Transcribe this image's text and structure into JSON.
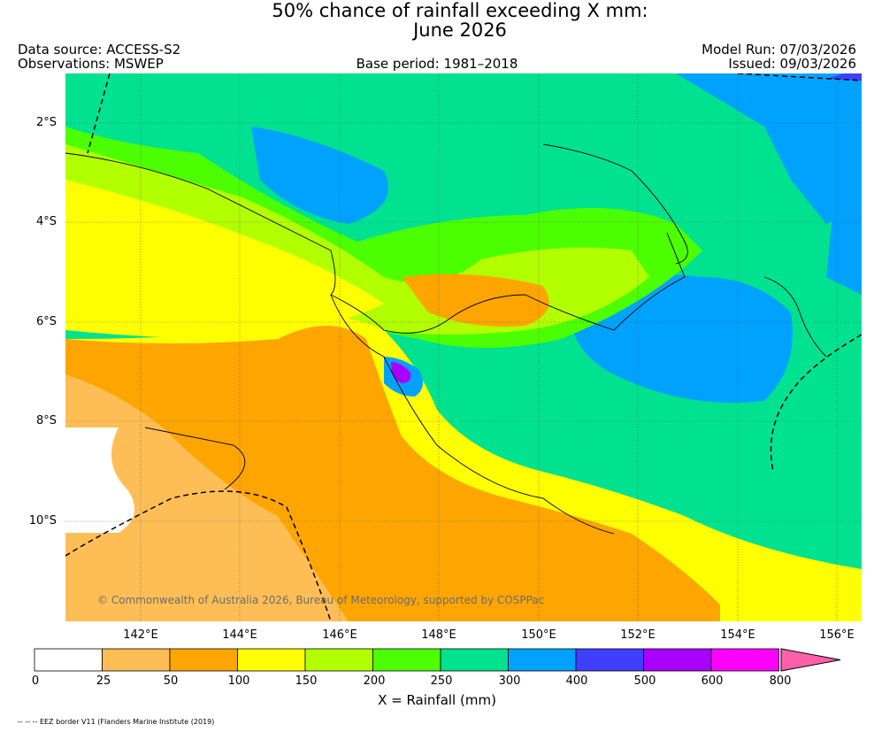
{
  "header": {
    "title_line1": "50% chance of rainfall exceeding X mm:",
    "title_line2": "June 2026",
    "data_source": "Data source: ACCESS-S2",
    "observations": "Observations: MSWEP",
    "base_period": "Base period: 1981–2018",
    "model_run": "Model Run: 07/03/2026",
    "issued": "Issued: 09/03/2026"
  },
  "map": {
    "lat_labels": [
      "2°S",
      "4°S",
      "6°S",
      "8°S",
      "10°S"
    ],
    "lon_labels": [
      "142°E",
      "144°E",
      "146°E",
      "148°E",
      "150°E",
      "152°E",
      "154°E",
      "156°E"
    ],
    "copyright": "© Commonwealth of Australia 2026, Bureau of Meteorology, supported by COSPPac",
    "sea_color": "#00e28f",
    "land_color_base": "#ffa500"
  },
  "colorbar": {
    "title": "X = Rainfall (mm)",
    "tick_labels": [
      "0",
      "25",
      "50",
      "100",
      "150",
      "200",
      "250",
      "300",
      "400",
      "500",
      "600",
      "800"
    ],
    "colors": [
      "#ffffff",
      "#ffbe55",
      "#ffa500",
      "#ffff00",
      "#b2ff00",
      "#4cff00",
      "#00e28f",
      "#00a2ff",
      "#3f3fff",
      "#aa00ff",
      "#ff00ff",
      "#ff5ea8"
    ]
  },
  "footnote": "-- -- -- EEZ border V11 (Flanders Marine Institute (2019)"
}
